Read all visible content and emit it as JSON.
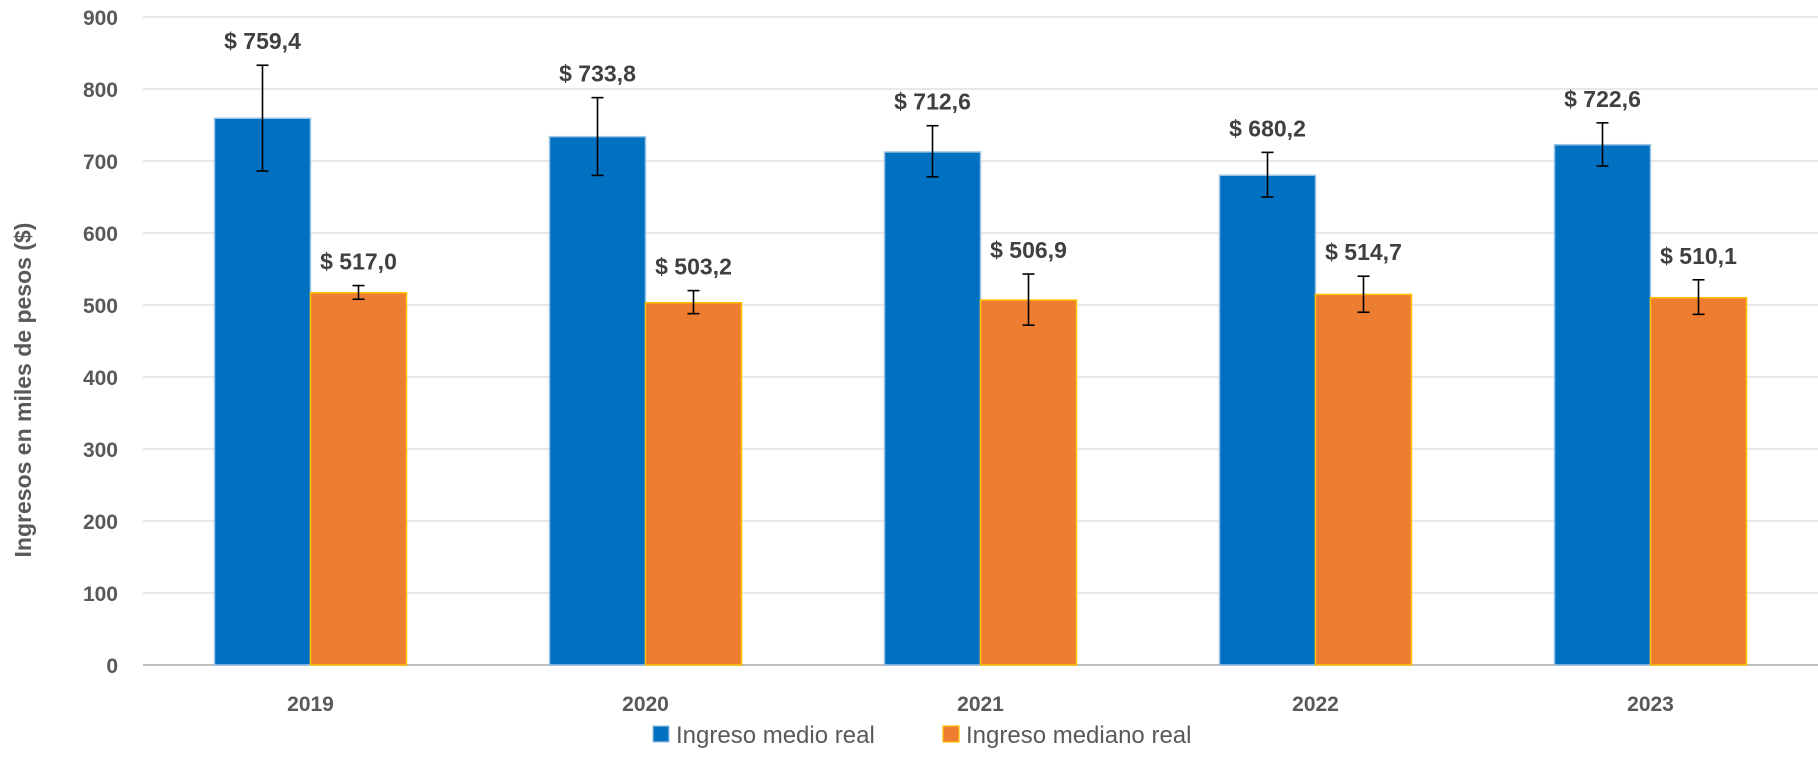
{
  "chart_data": {
    "type": "bar",
    "categories": [
      "2019",
      "2020",
      "2021",
      "2022",
      "2023"
    ],
    "series": [
      {
        "name": "Ingreso medio real",
        "color": "#0070C0",
        "values": [
          759.4,
          733.8,
          712.6,
          680.2,
          722.6
        ],
        "labels": [
          "$ 759,4",
          "$ 733,8",
          "$ 712,6",
          "$ 680,2",
          "$ 722,6"
        ],
        "error_low": [
          686,
          680,
          678,
          650,
          693
        ],
        "error_high": [
          833,
          788,
          749,
          712,
          753
        ]
      },
      {
        "name": "Ingreso mediano real",
        "color": "#ED7D31",
        "values": [
          517.0,
          503.2,
          506.9,
          514.7,
          510.1
        ],
        "labels": [
          "$ 517,0",
          "$ 503,2",
          "$ 506,9",
          "$ 514,7",
          "$ 510,1"
        ],
        "error_low": [
          508,
          488,
          472,
          490,
          487
        ],
        "error_high": [
          527,
          520,
          543,
          540,
          535
        ]
      }
    ],
    "ylabel": "Ingresos en miles de pesos ($)",
    "xlabel": "",
    "ylim": [
      0,
      900
    ],
    "yticks": [
      "0",
      "100",
      "200",
      "300",
      "400",
      "500",
      "600",
      "700",
      "800",
      "900"
    ],
    "grid": true,
    "legend_position": "bottom"
  }
}
